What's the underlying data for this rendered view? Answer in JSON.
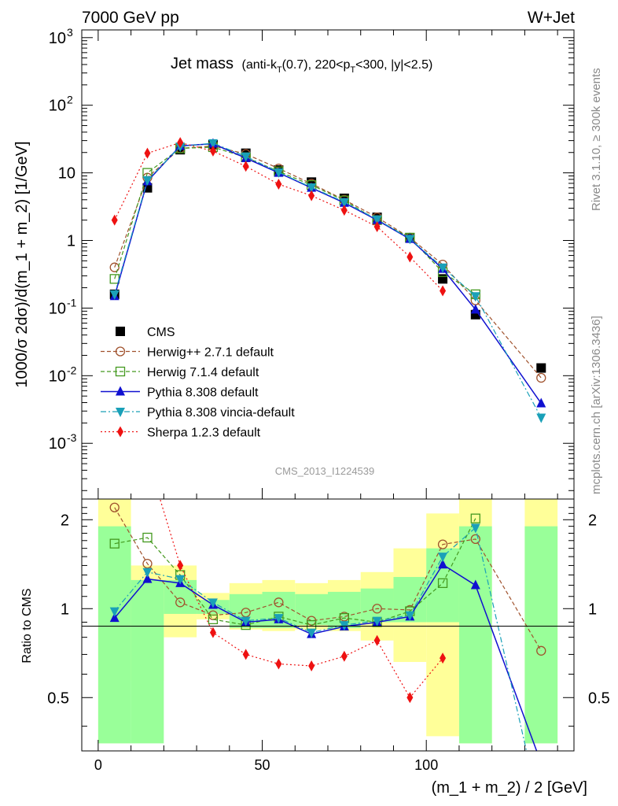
{
  "header": {
    "left": "7000 GeV pp",
    "right": "W+Jet"
  },
  "title": {
    "main": "Jet mass",
    "detail_prefix": "(anti-k",
    "detail_sub1": "T",
    "detail_mid": "(0.7), 220<p",
    "detail_sub2": "T",
    "detail_suffix": "<300, |y|<2.5)"
  },
  "side_labels": {
    "top": "Rivet 3.1.10, ≥ 300k events",
    "bottom": "mcplots.cern.ch [arXiv:1306.3436]"
  },
  "watermark": "CMS_2013_I1224539",
  "chart_data": {
    "type": "scatter",
    "title": "Jet mass (anti-kT(0.7), 220<pT<300, |y|<2.5)",
    "xlabel": "(m_1 + m_2) / 2 [GeV]",
    "ylabel": "1000/σ 2dσ)/d(m_1 + m_2) [1/GeV]",
    "ratio_ylabel": "Ratio to CMS",
    "xlim": [
      -5,
      145
    ],
    "ylim": [
      0.00015,
      1300
    ],
    "yscale": "log",
    "ratio_ylim": [
      0.33,
      2.35
    ],
    "ratio_yscale": "log",
    "x_ticks": [
      "0",
      "50",
      "100"
    ],
    "y_ticks": [
      "10⁻³",
      "10⁻²",
      "10⁻¹",
      "1",
      "10",
      "10²",
      "10³"
    ],
    "ratio_ticks": [
      "0.5",
      "1",
      "2"
    ],
    "legend_position": "left",
    "x": [
      5,
      15,
      25,
      35,
      45,
      55,
      65,
      75,
      85,
      95,
      105,
      115,
      135
    ],
    "bin_edges": [
      0,
      10,
      20,
      30,
      40,
      50,
      60,
      70,
      80,
      90,
      100,
      110,
      120,
      130,
      140
    ],
    "uncertainty_band": {
      "green_lo": [
        0.35,
        0.35,
        0.96,
        0.96,
        0.86,
        0.86,
        0.88,
        0.86,
        0.9,
        0.9,
        0.9,
        0.35,
        0.35,
        0.35
      ],
      "green_hi": [
        1.9,
        1.25,
        1.25,
        1.07,
        1.12,
        1.14,
        1.12,
        1.14,
        1.17,
        1.28,
        1.6,
        1.9,
        2.35,
        1.9
      ],
      "yellow_lo": [
        0.35,
        0.57,
        0.8,
        0.92,
        0.85,
        0.84,
        0.85,
        0.84,
        0.78,
        0.66,
        0.37,
        0.35,
        0.35,
        0.35
      ],
      "yellow_hi": [
        2.35,
        1.4,
        1.4,
        1.13,
        1.22,
        1.25,
        1.22,
        1.25,
        1.33,
        1.6,
        2.1,
        2.35,
        2.35,
        2.35
      ],
      "gaps": [
        12
      ]
    },
    "series": [
      {
        "name": "CMS",
        "color": "#000000",
        "marker": "square-filled",
        "line": "none",
        "values": [
          0.16,
          6.0,
          22.0,
          26.0,
          19.5,
          11.0,
          7.3,
          4.2,
          2.2,
          1.1,
          0.27,
          0.08,
          0.013
        ]
      },
      {
        "name": "Herwig++ 2.7.1 default",
        "color": "#a0522d",
        "marker": "circle-open",
        "line": "dashed",
        "values": [
          0.4,
          8.5,
          23.0,
          25.0,
          19.0,
          11.6,
          6.9,
          4.0,
          2.2,
          1.1,
          0.44,
          0.13,
          0.0093
        ],
        "ratio": [
          2.2,
          1.42,
          1.05,
          0.95,
          0.97,
          1.05,
          0.91,
          0.94,
          1.0,
          0.99,
          1.65,
          1.72,
          0.72
        ]
      },
      {
        "name": "Herwig 7.1.4 default",
        "color": "#44991f",
        "marker": "square-open",
        "line": "dashed",
        "values": [
          0.27,
          10.0,
          23.0,
          24.0,
          17.0,
          10.5,
          6.6,
          3.9,
          2.0,
          1.1,
          0.34,
          0.16,
          null
        ],
        "ratio": [
          1.66,
          1.74,
          1.3,
          0.92,
          0.88,
          0.94,
          0.88,
          0.93,
          0.9,
          0.98,
          1.22,
          2.02,
          null
        ]
      },
      {
        "name": "Pythia 8.308 default",
        "color": "#1010d0",
        "marker": "triangle-up",
        "line": "solid",
        "values": [
          0.15,
          7.5,
          25.0,
          27.0,
          16.5,
          10.0,
          6.0,
          3.6,
          2.0,
          1.05,
          0.38,
          0.095,
          0.0039
        ],
        "ratio": [
          0.93,
          1.26,
          1.22,
          1.03,
          0.9,
          0.92,
          0.82,
          0.87,
          0.9,
          0.94,
          1.41,
          1.2,
          0.3
        ]
      },
      {
        "name": "Pythia 8.308 vincia-default",
        "color": "#1aa0b8",
        "marker": "triangle-down",
        "line": "dashdot",
        "values": [
          0.16,
          7.8,
          24.5,
          27.5,
          17.5,
          10.2,
          6.1,
          3.7,
          2.05,
          1.06,
          0.4,
          0.15,
          0.0024
        ],
        "ratio": [
          0.98,
          1.33,
          1.26,
          1.05,
          0.91,
          0.93,
          0.83,
          0.88,
          0.91,
          0.95,
          1.5,
          1.88,
          0.2
        ]
      },
      {
        "name": "Sherpa 1.2.3 default",
        "color": "#ee1111",
        "marker": "diamond",
        "line": "dotted",
        "values": [
          2.0,
          19.5,
          28.0,
          21.0,
          12.5,
          6.8,
          4.6,
          2.8,
          1.6,
          0.57,
          0.18,
          null,
          null
        ],
        "ratio": [
          12.5,
          3.25,
          1.4,
          0.83,
          0.7,
          0.65,
          0.64,
          0.69,
          0.78,
          0.5,
          0.68,
          null,
          null
        ]
      }
    ]
  }
}
